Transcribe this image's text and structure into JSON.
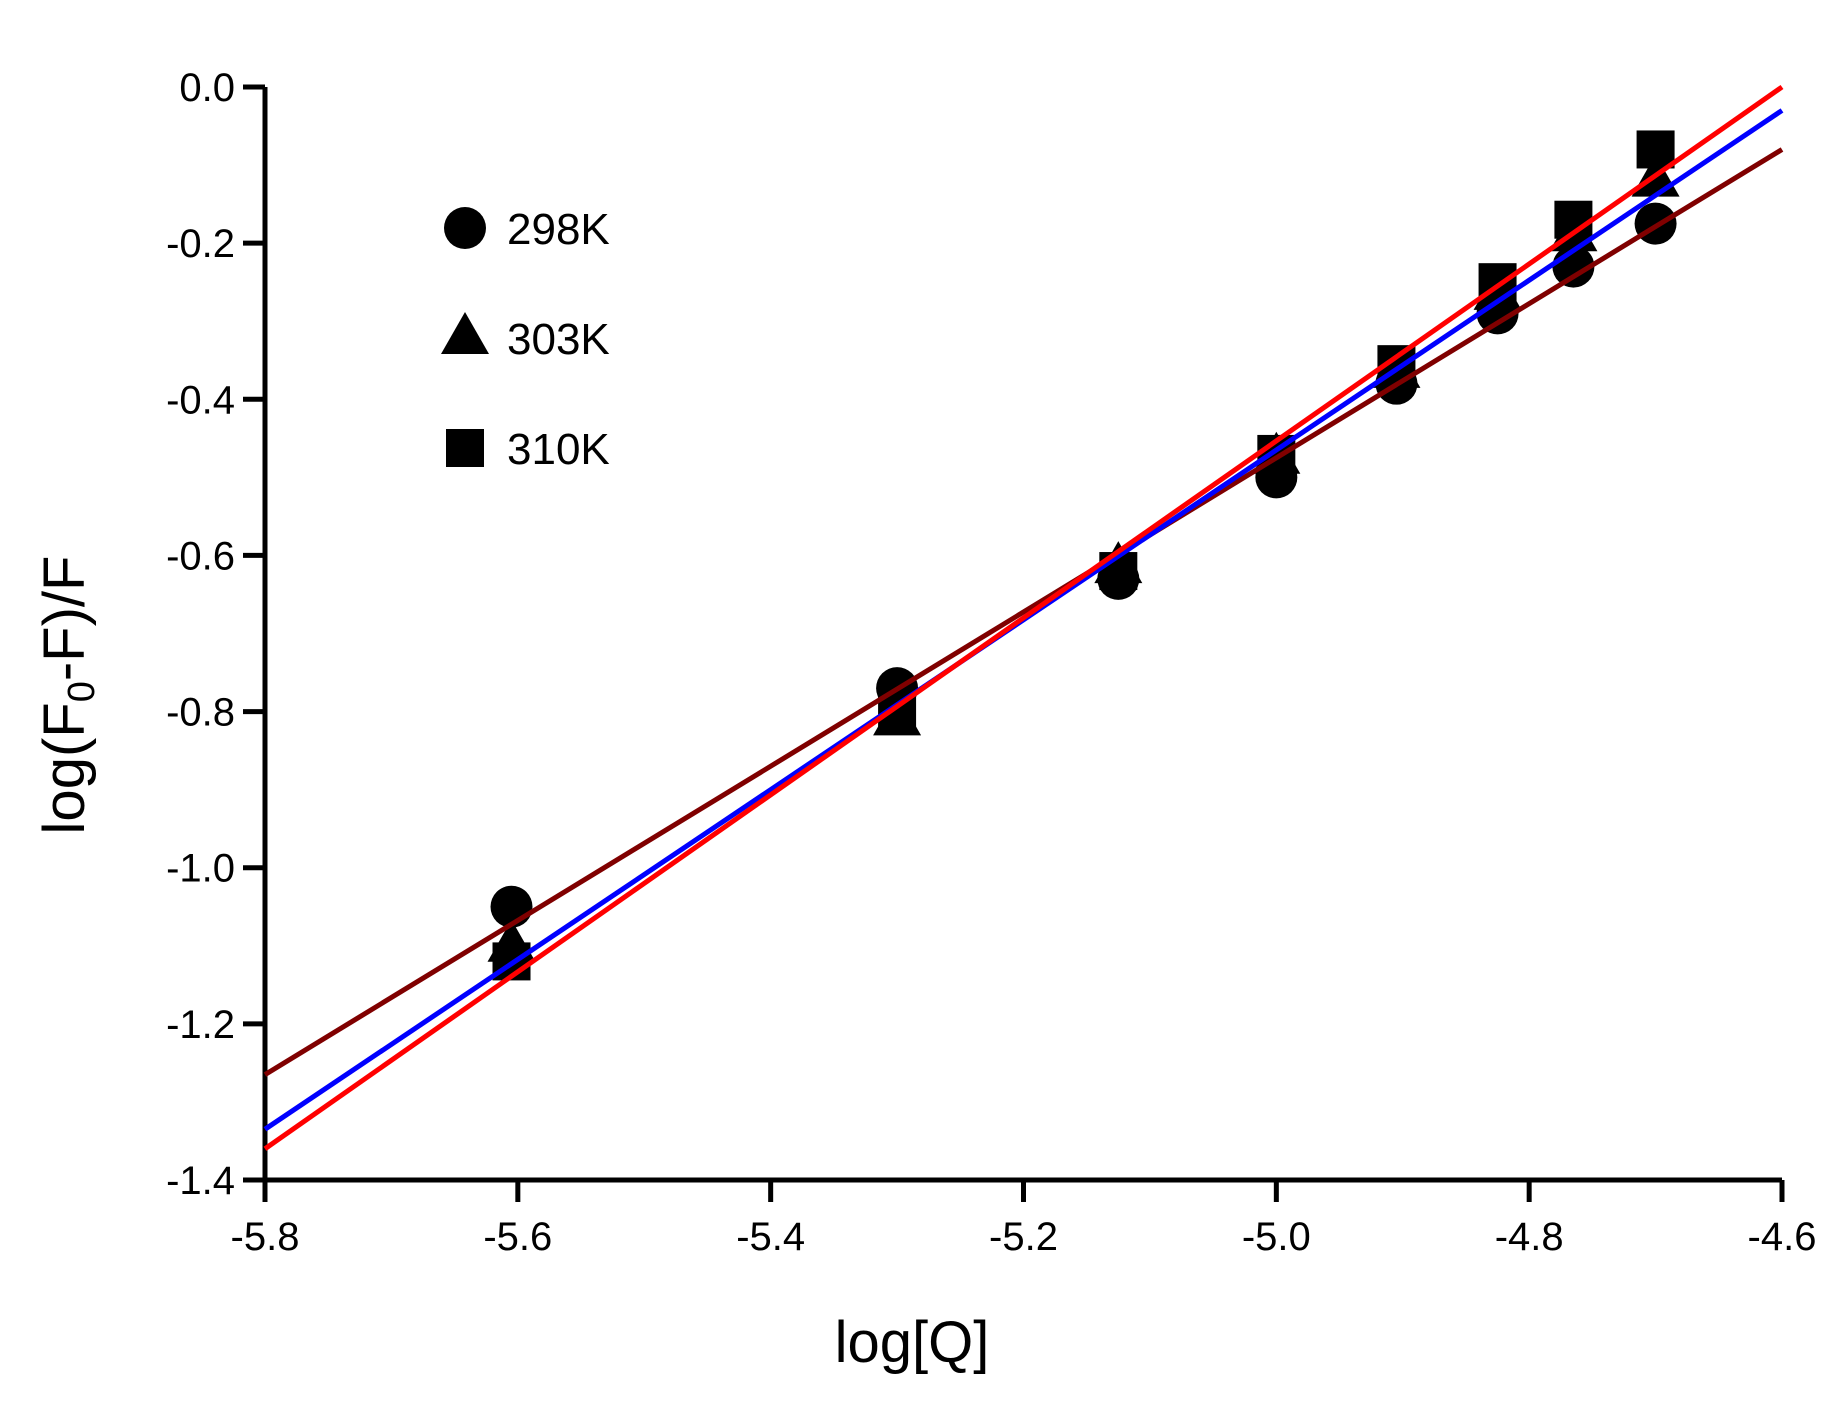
{
  "chart_data": {
    "type": "scatter",
    "title": "",
    "xlabel": "log[Q]",
    "ylabel": {
      "prefix": "log(F",
      "subscript": "0",
      "suffix": "-F)/F"
    },
    "xlim": [
      -5.8,
      -4.6
    ],
    "ylim": [
      -1.4,
      0.0
    ],
    "x_ticks": [
      -5.8,
      -5.6,
      -5.4,
      -5.2,
      -5.0,
      -4.8,
      -4.6
    ],
    "x_tick_labels": [
      "-5.8",
      "-5.6",
      "-5.4",
      "-5.2",
      "-5.0",
      "-4.8",
      "-4.6"
    ],
    "y_ticks": [
      0.0,
      -0.2,
      -0.4,
      -0.6,
      -0.8,
      -1.0,
      -1.2,
      -1.4
    ],
    "y_tick_labels": [
      "0.0",
      "-0.2",
      "-0.4",
      "-0.6",
      "-0.8",
      "-1.0",
      "-1.2",
      "-1.4"
    ],
    "grid": false,
    "legend_position": "top-left",
    "series": [
      {
        "name": "298K",
        "marker": "circle",
        "fit_color": "#800000",
        "x": [
          -5.605,
          -5.3,
          -5.125,
          -5.0,
          -4.905,
          -4.825,
          -4.765,
          -4.7
        ],
        "y": [
          -1.05,
          -0.77,
          -0.63,
          -0.5,
          -0.38,
          -0.29,
          -0.23,
          -0.175
        ],
        "fit": {
          "x": [
            -5.8,
            -4.6
          ],
          "y": [
            -1.265,
            -0.08
          ]
        }
      },
      {
        "name": "303K",
        "marker": "triangle",
        "fit_color": "#0000ff",
        "x": [
          -5.605,
          -5.3,
          -5.125,
          -5.0,
          -4.905,
          -4.825,
          -4.765,
          -4.7
        ],
        "y": [
          -1.1,
          -0.81,
          -0.615,
          -0.475,
          -0.365,
          -0.265,
          -0.19,
          -0.12
        ],
        "fit": {
          "x": [
            -5.8,
            -4.6
          ],
          "y": [
            -1.335,
            -0.03
          ]
        }
      },
      {
        "name": "310K",
        "marker": "square",
        "fit_color": "#ff0000",
        "x": [
          -5.605,
          -5.3,
          -5.125,
          -5.0,
          -4.905,
          -4.825,
          -4.765,
          -4.7
        ],
        "y": [
          -1.12,
          -0.8,
          -0.62,
          -0.47,
          -0.355,
          -0.25,
          -0.17,
          -0.08
        ],
        "fit": {
          "x": [
            -5.8,
            -4.6
          ],
          "y": [
            -1.36,
            0.0
          ]
        }
      }
    ]
  }
}
